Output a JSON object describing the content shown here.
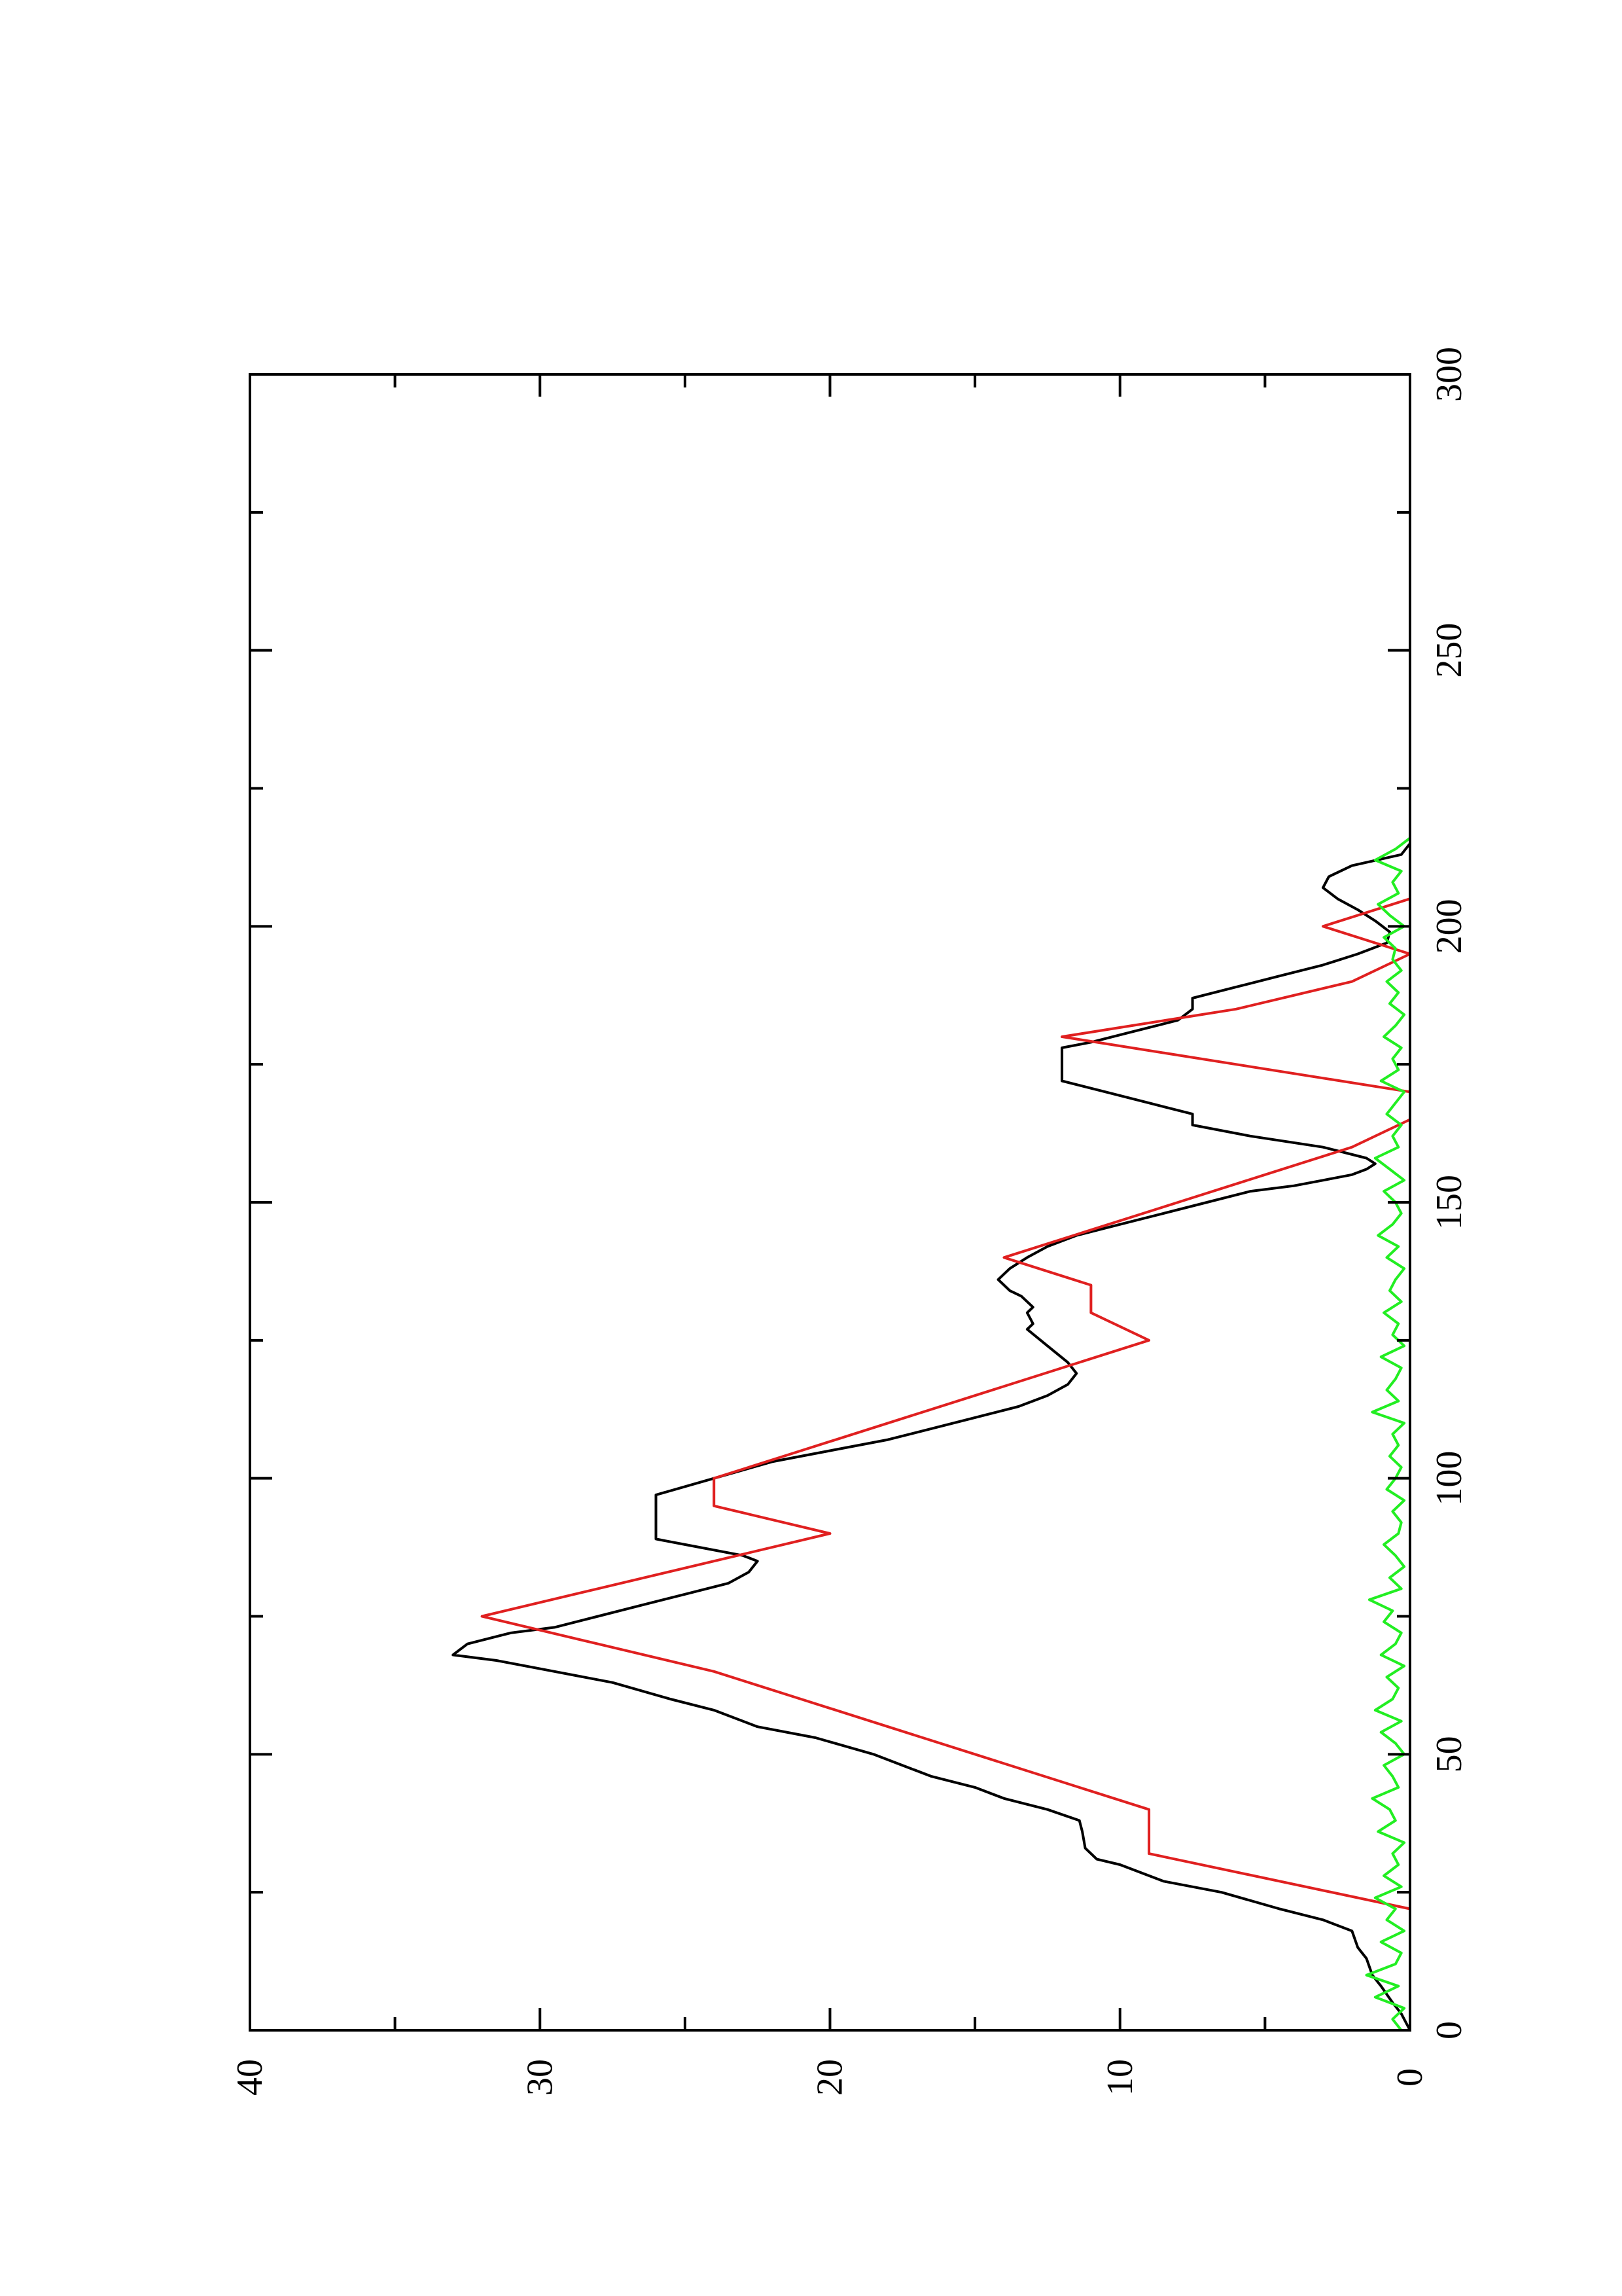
{
  "chart_data": {
    "type": "line",
    "orientation": "rotated-90-clockwise",
    "title": "",
    "xlabel": "",
    "ylabel": "",
    "xlim": [
      0,
      300
    ],
    "ylim": [
      0,
      40
    ],
    "x_major_ticks": [
      0,
      50,
      100,
      150,
      200,
      250,
      300
    ],
    "x_minor_ticks": [
      25,
      75,
      125,
      175,
      225,
      275
    ],
    "y_major_ticks": [
      0,
      10,
      20,
      30,
      40
    ],
    "y_minor_ticks": [
      5,
      15,
      25,
      35
    ],
    "x_tick_labels": [
      "0",
      "50",
      "100",
      "150",
      "200",
      "250",
      "300"
    ],
    "y_tick_labels": [
      "0",
      "10",
      "20",
      "30",
      "40"
    ],
    "grid": false,
    "legend": "none",
    "series": [
      {
        "color": "#000000",
        "x": [
          0,
          3,
          5,
          8,
          10,
          13,
          15,
          18,
          20,
          22,
          25,
          27,
          30,
          31,
          33,
          36,
          38,
          40,
          42,
          44,
          46,
          48,
          50,
          53,
          55,
          58,
          60,
          63,
          65,
          67,
          68,
          70,
          72,
          73,
          75,
          77,
          79,
          81,
          83,
          85,
          86,
          88,
          89,
          91,
          93,
          95,
          97,
          100,
          103,
          105,
          107,
          109,
          111,
          113,
          115,
          117,
          119,
          121,
          124,
          127,
          128,
          130,
          131,
          133,
          134,
          135,
          136,
          137,
          138,
          140,
          142,
          144,
          146,
          148,
          150,
          152,
          153,
          154,
          155,
          156,
          157,
          158,
          160,
          162,
          164,
          166,
          168,
          170,
          172,
          174,
          176,
          178,
          179,
          181,
          183,
          185,
          187,
          189,
          191,
          193,
          195,
          197,
          199,
          201,
          203,
          205,
          207,
          209,
          211,
          213,
          215
        ],
        "y": [
          0,
          0.3,
          0.6,
          1,
          1.3,
          1.5,
          1.8,
          2,
          3,
          4.5,
          6.5,
          8.5,
          10,
          10.8,
          11.2,
          11.3,
          11.4,
          12.5,
          14,
          15,
          16.5,
          17.5,
          18.5,
          20.5,
          22.5,
          24,
          25.5,
          27.5,
          29.5,
          31.5,
          33,
          32.5,
          31,
          29.5,
          28,
          26.5,
          25,
          23.5,
          22.8,
          22.5,
          23,
          25,
          26,
          26,
          26,
          26,
          26,
          24,
          22,
          20,
          18,
          16.5,
          15,
          13.5,
          12.5,
          11.8,
          11.5,
          11.8,
          12.5,
          13.2,
          13,
          13.2,
          13,
          13.4,
          13.8,
          14,
          14.2,
          14,
          13.8,
          13.2,
          12.5,
          11.5,
          10,
          8.5,
          7,
          5.5,
          4,
          3,
          2,
          1.5,
          1.2,
          1.5,
          3,
          5.5,
          7.5,
          7.5,
          9,
          10.5,
          12,
          12,
          12,
          12,
          11,
          9.5,
          8,
          7.5,
          7.5,
          6,
          4.5,
          3,
          1.8,
          0.8,
          0.7,
          1.2,
          1.8,
          2.5,
          3,
          2.8,
          2,
          0.3,
          0
        ]
      },
      {
        "color": "#e02020",
        "x": [
          0,
          22,
          32,
          40,
          45,
          50,
          55,
          60,
          65,
          70,
          75,
          80,
          85,
          90,
          95,
          100,
          105,
          110,
          115,
          120,
          125,
          130,
          135,
          140,
          145,
          150,
          155,
          160,
          165,
          170,
          175,
          180,
          185,
          190,
          195,
          200,
          205,
          210,
          215
        ],
        "y": [
          0,
          0,
          9,
          9,
          12,
          15,
          18,
          21,
          24,
          28,
          32,
          28,
          24,
          20,
          24,
          24,
          21,
          18,
          15,
          12,
          9,
          11,
          11,
          14,
          11,
          8,
          5,
          2,
          0,
          0,
          6,
          12,
          6,
          2,
          0,
          3,
          0,
          0,
          0
        ]
      },
      {
        "color": "#22ee22",
        "x": [
          0,
          2,
          4,
          6,
          8,
          10,
          12,
          14,
          16,
          18,
          20,
          22,
          24,
          26,
          28,
          30,
          32,
          34,
          36,
          38,
          40,
          42,
          44,
          46,
          48,
          50,
          52,
          54,
          56,
          58,
          60,
          62,
          64,
          66,
          68,
          70,
          72,
          74,
          76,
          78,
          80,
          82,
          84,
          86,
          88,
          90,
          92,
          94,
          96,
          98,
          100,
          102,
          104,
          106,
          108,
          110,
          112,
          114,
          116,
          118,
          120,
          122,
          124,
          126,
          128,
          130,
          132,
          134,
          136,
          138,
          140,
          142,
          144,
          146,
          148,
          150,
          152,
          154,
          156,
          158,
          160,
          162,
          164,
          166,
          168,
          170,
          172,
          174,
          176,
          178,
          180,
          182,
          184,
          186,
          188,
          190,
          192,
          194,
          196,
          198,
          200,
          202,
          204,
          206,
          208,
          210,
          212,
          214,
          216
        ],
        "y": [
          0.3,
          0.6,
          0.2,
          1.2,
          0.4,
          1.5,
          0.5,
          0.3,
          1,
          0.2,
          0.8,
          0.5,
          1.2,
          0.3,
          0.9,
          0.4,
          0.6,
          0.2,
          1.1,
          0.5,
          0.7,
          1.3,
          0.4,
          0.6,
          0.9,
          0.2,
          0.5,
          1,
          0.3,
          1.2,
          0.6,
          0.4,
          0.8,
          0.2,
          1,
          0.5,
          0.3,
          0.9,
          0.6,
          1.4,
          0.3,
          0.7,
          0.2,
          0.5,
          0.9,
          0.4,
          0.3,
          0.6,
          0.2,
          0.8,
          0.5,
          0.3,
          0.7,
          0.4,
          0.6,
          0.2,
          1.3,
          0.4,
          0.8,
          0.5,
          0.3,
          1,
          0.2,
          0.6,
          0.4,
          0.9,
          0.3,
          0.7,
          0.5,
          0.2,
          0.8,
          0.4,
          1.1,
          0.6,
          0.3,
          0.5,
          0.9,
          0.2,
          0.7,
          1.2,
          0.4,
          0.6,
          0.3,
          0.8,
          0.5,
          0.2,
          1,
          0.4,
          0.6,
          0.3,
          0.9,
          0.5,
          0.2,
          0.7,
          0.4,
          0.8,
          0.3,
          0.6,
          0.5,
          0.9,
          0.2,
          0.7,
          1.1,
          0.4,
          0.6,
          0.3,
          1.2,
          0.5,
          0
        ]
      }
    ]
  }
}
